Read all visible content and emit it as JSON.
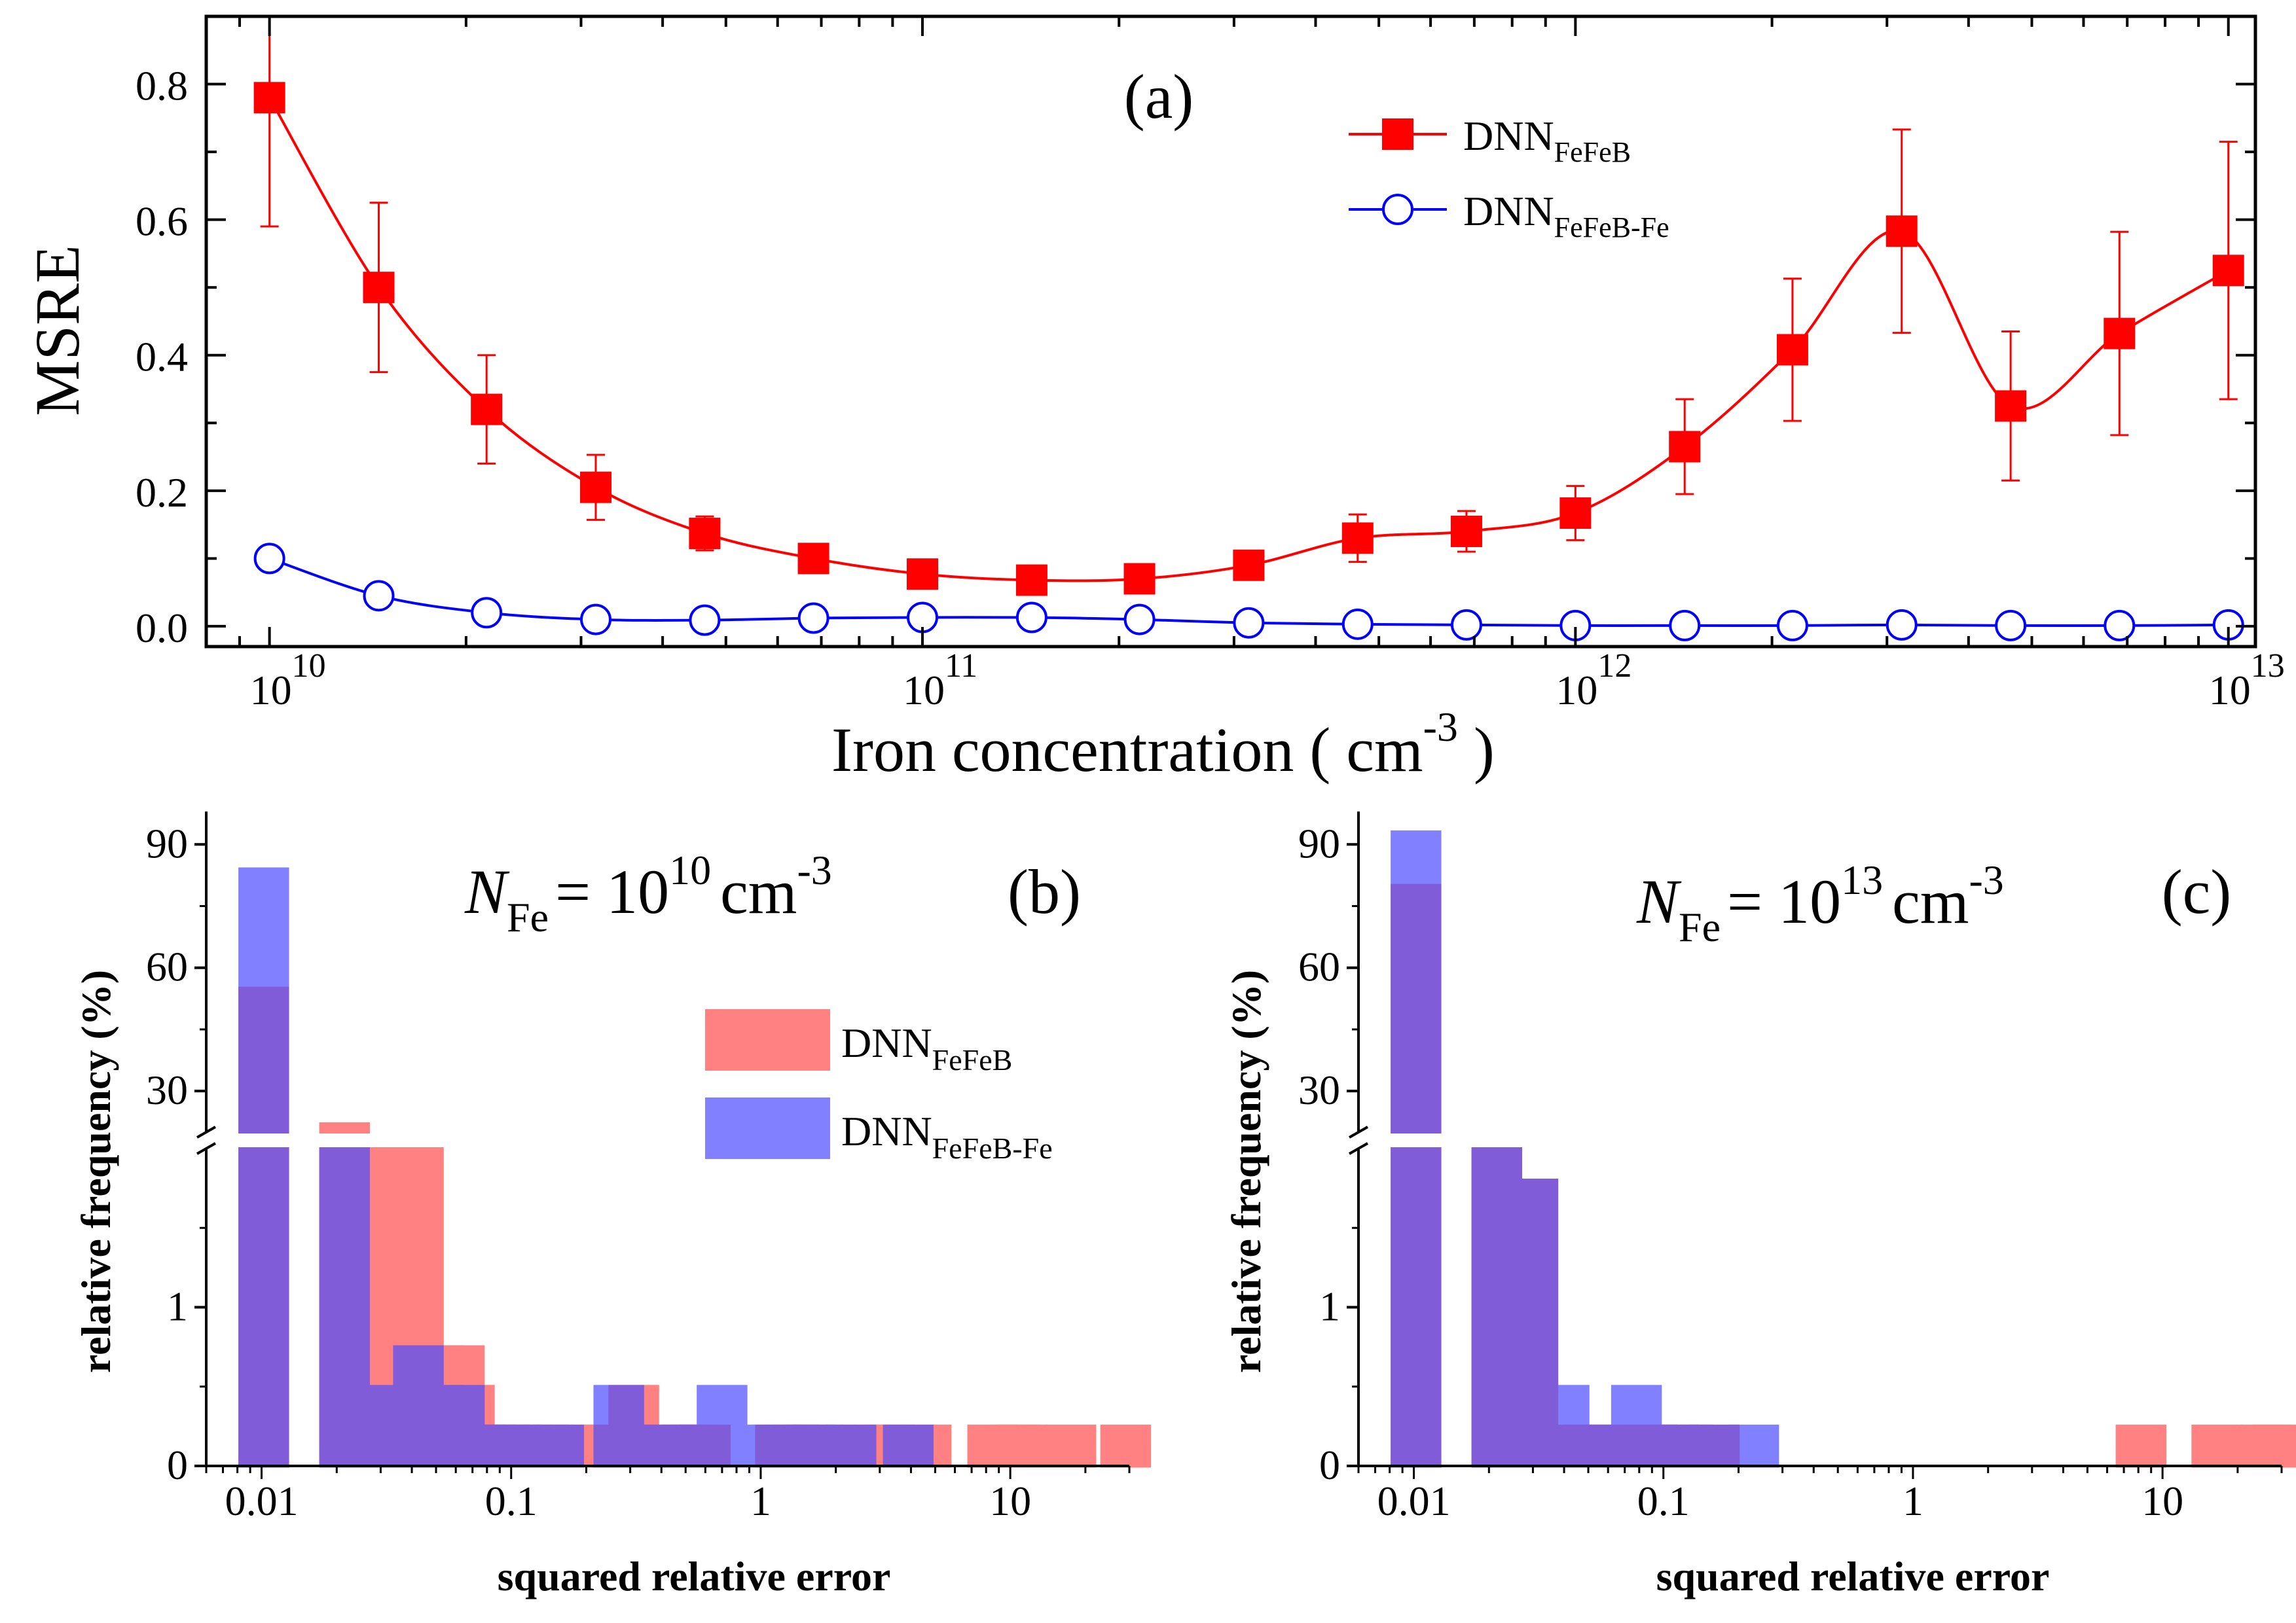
{
  "chart_data": [
    {
      "panel": "(a)",
      "type": "line",
      "xlabel": "Iron concentration ( cm",
      "xlabel_sup": "-3",
      "xlabel_end": ")",
      "ylabel": "MSRE",
      "xscale": "log",
      "xlim": [
        8000000000.0,
        11000000000000.0
      ],
      "ylim": [
        -0.03,
        0.9
      ],
      "xticks": [
        {
          "base": "10",
          "exp": "10"
        },
        {
          "base": "10",
          "exp": "11"
        },
        {
          "base": "10",
          "exp": "12"
        },
        {
          "base": "10",
          "exp": "13"
        }
      ],
      "yticks": [
        "0.0",
        "0.2",
        "0.4",
        "0.6",
        "0.8"
      ],
      "legend_position": "top-right",
      "x": [
        10000000000.0,
        14700000000.0,
        21500000000.0,
        31600000000.0,
        46400000000.0,
        68100000000.0,
        100000000000.0,
        147000000000.0,
        215000000000.0,
        316000000000.0,
        464000000000.0,
        681000000000.0,
        1000000000000.0,
        1470000000000.0,
        2150000000000.0,
        3160000000000.0,
        4640000000000.0,
        6810000000000.0,
        10000000000000.0
      ],
      "series": [
        {
          "name": "DNN",
          "sub": "FeFeB",
          "color": "#ff0000",
          "marker": "filled-square",
          "values": [
            0.78,
            0.5,
            0.32,
            0.205,
            0.137,
            0.1,
            0.077,
            0.068,
            0.07,
            0.09,
            0.13,
            0.14,
            0.167,
            0.265,
            0.408,
            0.583,
            0.325,
            0.432,
            0.525
          ],
          "errors": [
            0.19,
            0.125,
            0.08,
            0.048,
            0.025,
            0.012,
            0.01,
            0.01,
            0.012,
            0.015,
            0.035,
            0.03,
            0.04,
            0.07,
            0.105,
            0.15,
            0.11,
            0.15,
            0.19
          ]
        },
        {
          "name": "DNN",
          "sub": "FeFeB-Fe",
          "color": "#0000ff",
          "marker": "open-circle",
          "values": [
            0.1,
            0.045,
            0.02,
            0.01,
            0.009,
            0.012,
            0.013,
            0.013,
            0.01,
            0.005,
            0.003,
            0.002,
            0.001,
            0.001,
            0.001,
            0.002,
            0.001,
            0.001,
            0.002
          ]
        }
      ]
    },
    {
      "panel": "(b)",
      "type": "bar",
      "annotation": {
        "symbol": "N",
        "sub": "Fe",
        "text": "= 10",
        "sup": "10",
        "unit": "cm",
        "unit_sup": "-3"
      },
      "xlabel": "squared relative error",
      "ylabel": "relative frequency (%)",
      "xscale": "log",
      "xlim": [
        0.006,
        30
      ],
      "yaxis_break": true,
      "ylim_upper": [
        20,
        98
      ],
      "ylim_lower": [
        0,
        2
      ],
      "xticks": [
        "0.01",
        "0.1",
        "1",
        "10"
      ],
      "yticks_upper": [
        "30",
        "60",
        "90"
      ],
      "yticks_lower": [
        "0",
        "1"
      ],
      "legend_position": "center-right",
      "series": [
        {
          "name": "DNN",
          "sub": "FeFeB",
          "color": "#ff4d4d",
          "opacity": 0.7,
          "bars": [
            [
              0.0102,
              55
            ],
            [
              0.0215,
              22
            ],
            [
              0.031,
              2
            ],
            [
              0.0425,
              2
            ],
            [
              0.051,
              0.75
            ],
            [
              0.062,
              0.75
            ],
            [
              0.068,
              0.5
            ],
            [
              0.075,
              0.25
            ],
            [
              0.085,
              0.25
            ],
            [
              0.093,
              0.25
            ],
            [
              0.103,
              0.25
            ],
            [
              0.115,
              0.25
            ],
            [
              0.14,
              0.25
            ],
            [
              0.16,
              0.25
            ],
            [
              0.19,
              0.25
            ],
            [
              0.255,
              0.25
            ],
            [
              0.29,
              0.25
            ],
            [
              0.31,
              0.5
            ],
            [
              0.38,
              0.25
            ],
            [
              0.5,
              0.25
            ],
            [
              0.53,
              0.25
            ],
            [
              0.6,
              0.25
            ],
            [
              1.2,
              0.25
            ],
            [
              1.4,
              0.25
            ],
            [
              1.55,
              0.25
            ],
            [
              1.9,
              0.25
            ],
            [
              2.6,
              0.25
            ],
            [
              3.0,
              0.25
            ],
            [
              3.3,
              0.25
            ],
            [
              4.0,
              0.25
            ],
            [
              4.6,
              0.25
            ],
            [
              8.5,
              0.25
            ],
            [
              10.5,
              0.25
            ],
            [
              11.2,
              0.25
            ],
            [
              17.5,
              0.25
            ],
            [
              29,
              0.25
            ]
          ]
        },
        {
          "name": "DNN",
          "sub": "FeFeB-Fe",
          "color": "#4d4dff",
          "opacity": 0.7,
          "bars": [
            [
              0.0102,
              84
            ],
            [
              0.0215,
              2
            ],
            [
              0.031,
              0.5
            ],
            [
              0.0425,
              0.75
            ],
            [
              0.051,
              0.5
            ],
            [
              0.062,
              0.5
            ],
            [
              0.074,
              0.25
            ],
            [
              0.083,
              0.25
            ],
            [
              0.095,
              0.25
            ],
            [
              0.105,
              0.25
            ],
            [
              0.135,
              0.25
            ],
            [
              0.155,
              0.25
            ],
            [
              0.27,
              0.5
            ],
            [
              0.33,
              0.25
            ],
            [
              0.43,
              0.25
            ],
            [
              0.52,
              0.25
            ],
            [
              0.55,
              0.25
            ],
            [
              0.6,
              0.25
            ],
            [
              0.7,
              0.5
            ],
            [
              0.85,
              0.25
            ],
            [
              1.15,
              0.25
            ],
            [
              1.35,
              0.25
            ],
            [
              1.6,
              0.25
            ],
            [
              1.7,
              0.25
            ],
            [
              2.3,
              0.25
            ],
            [
              3.9,
              0.25
            ]
          ]
        }
      ]
    },
    {
      "panel": "(c)",
      "type": "bar",
      "annotation": {
        "symbol": "N",
        "sub": "Fe",
        "text": "= 10",
        "sup": "13",
        "unit": "cm",
        "unit_sup": "-3"
      },
      "xlabel": "squared relative error",
      "ylabel": "relative frequency (%)",
      "xscale": "log",
      "xlim": [
        0.006,
        30
      ],
      "yaxis_break": true,
      "ylim_upper": [
        20,
        98
      ],
      "ylim_lower": [
        0,
        2
      ],
      "xticks": [
        "0.01",
        "0.1",
        "1",
        "10"
      ],
      "yticks_upper": [
        "30",
        "60",
        "90"
      ],
      "yticks_lower": [
        "0",
        "1"
      ],
      "series": [
        {
          "name": "DNN",
          "sub": "FeFeB",
          "color": "#ff4d4d",
          "opacity": 0.7,
          "bars": [
            [
              0.0102,
              80
            ],
            [
              0.0215,
              2
            ],
            [
              0.03,
              1.8
            ],
            [
              0.04,
              0.25
            ],
            [
              0.05,
              0.25
            ],
            [
              0.06,
              0.25
            ],
            [
              0.078,
              0.25
            ],
            [
              0.09,
              0.25
            ],
            [
              0.11,
              0.25
            ],
            [
              0.125,
              0.25
            ],
            [
              0.16,
              0.25
            ],
            [
              8.2,
              0.25
            ],
            [
              16.5,
              0.25
            ],
            [
              26,
              0.25
            ],
            [
              29,
              0.25
            ]
          ]
        },
        {
          "name": "DNN",
          "sub": "FeFeB-Fe",
          "color": "#4d4dff",
          "opacity": 0.7,
          "bars": [
            [
              0.0102,
              93
            ],
            [
              0.0215,
              2
            ],
            [
              0.03,
              1.8
            ],
            [
              0.04,
              0.5
            ],
            [
              0.05,
              0.25
            ],
            [
              0.06,
              0.25
            ],
            [
              0.078,
              0.5
            ],
            [
              0.09,
              0.25
            ],
            [
              0.11,
              0.25
            ],
            [
              0.125,
              0.25
            ],
            [
              0.16,
              0.25
            ],
            [
              0.23,
              0.25
            ]
          ]
        }
      ]
    }
  ]
}
